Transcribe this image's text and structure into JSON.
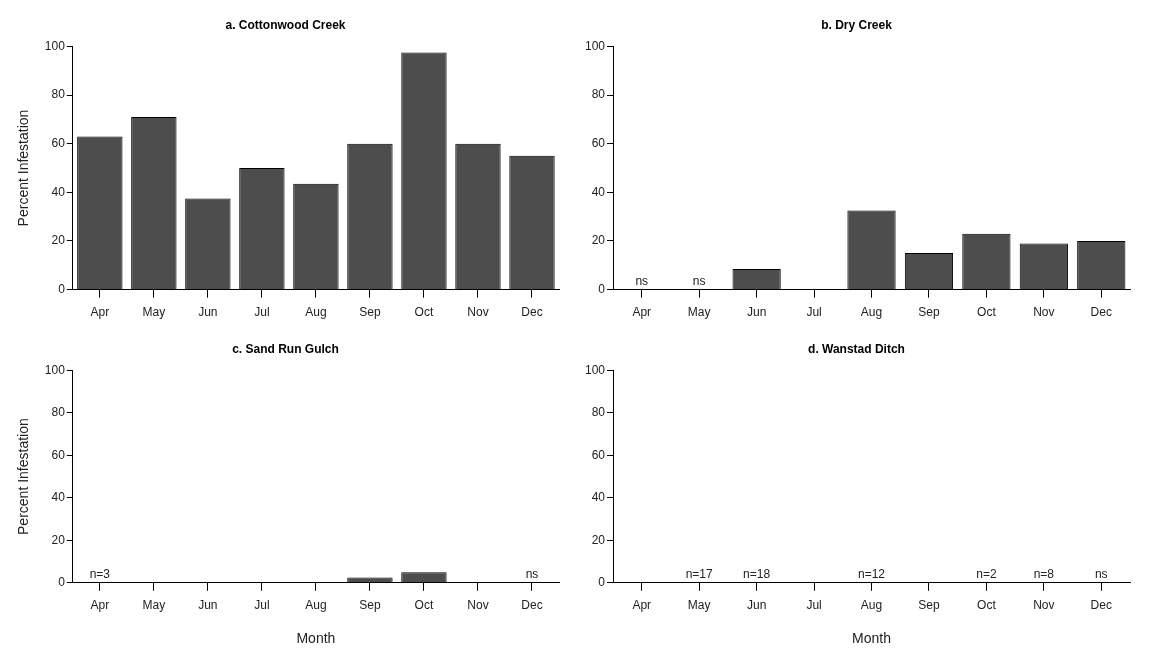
{
  "chart_data": [
    {
      "type": "bar",
      "title": "a. Cottonwood Creek",
      "ylabel": "Percent Infestation",
      "categories": [
        "Apr",
        "May",
        "Jun",
        "Jul",
        "Aug",
        "Sep",
        "Oct",
        "Nov",
        "Dec"
      ],
      "values": [
        63,
        71,
        37.5,
        50,
        43.5,
        60,
        97.5,
        60,
        55
      ],
      "color": "#4d4d4d",
      "ylim": [
        0,
        100
      ],
      "yticks": [
        0,
        20,
        40,
        60,
        80,
        100
      ]
    },
    {
      "type": "bar",
      "title": "b. Dry Creek",
      "categories": [
        "Apr",
        "May",
        "Jun",
        "Jul",
        "Aug",
        "Sep",
        "Oct",
        "Nov",
        "Dec"
      ],
      "values": [
        null,
        null,
        8.5,
        0,
        32.5,
        15,
        23,
        19,
        20
      ],
      "value_labels": [
        "ns",
        "ns",
        null,
        null,
        null,
        null,
        null,
        null,
        null
      ],
      "color": "#4d4d4d",
      "ylim": [
        0,
        100
      ],
      "yticks": [
        0,
        20,
        40,
        60,
        80,
        100
      ]
    },
    {
      "type": "bar",
      "title": "c. Sand Run Gulch",
      "ylabel": "Percent Infestation",
      "xlabel": "Month",
      "categories": [
        "Apr",
        "May",
        "Jun",
        "Jul",
        "Aug",
        "Sep",
        "Oct",
        "Nov",
        "Dec"
      ],
      "values": [
        0,
        0,
        0,
        0,
        0,
        2.5,
        5,
        0,
        null
      ],
      "value_labels": [
        null,
        null,
        null,
        null,
        null,
        null,
        null,
        null,
        "ns"
      ],
      "annotations": [
        {
          "text": "n=3",
          "x": "Apr",
          "y": 0
        }
      ],
      "color": "#4d4d4d",
      "ylim": [
        0,
        100
      ],
      "yticks": [
        0,
        20,
        40,
        60,
        80,
        100
      ]
    },
    {
      "type": "bar",
      "title": "d. Wanstad Ditch",
      "xlabel": "Month",
      "categories": [
        "Apr",
        "May",
        "Jun",
        "Jul",
        "Aug",
        "Sep",
        "Oct",
        "Nov",
        "Dec"
      ],
      "values": [
        0,
        0,
        0,
        0,
        0,
        0,
        0,
        0,
        null
      ],
      "value_labels": [
        null,
        null,
        null,
        null,
        null,
        null,
        null,
        null,
        "ns"
      ],
      "annotations": [
        {
          "text": "n=17",
          "x": "May",
          "y": 0
        },
        {
          "text": "n=18",
          "x": "Jun",
          "y": 0
        },
        {
          "text": "n=12",
          "x": "Aug",
          "y": 0
        },
        {
          "text": "n=2",
          "x": "Oct",
          "y": 0
        },
        {
          "text": "n=8",
          "x": "Nov",
          "y": 0
        }
      ],
      "color": "#4d4d4d",
      "ylim": [
        0,
        100
      ],
      "yticks": [
        0,
        20,
        40,
        60,
        80,
        100
      ]
    }
  ]
}
